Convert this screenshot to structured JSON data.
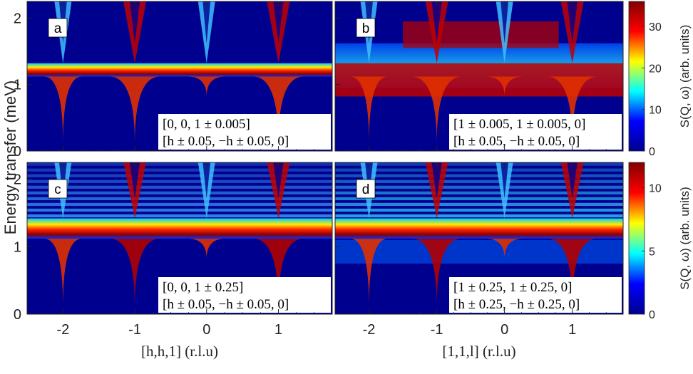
{
  "chart_data": {
    "type": "heatmap",
    "ylabel": "Energy transfer (meV)",
    "ylim": [
      0,
      2.25
    ],
    "y_ticks": [
      "0",
      "1",
      "2"
    ],
    "panels": [
      {
        "label": "a",
        "column": 0,
        "row": 0,
        "xlabel": "[h,h,1] (r.l.u)",
        "xlim": [
          -2.5,
          1.75
        ],
        "x_ticks": [
          "-2",
          "-1",
          "0",
          "1"
        ],
        "annotation": [
          "[0, 0, 1 ± 0.005]",
          "[h ± 0.05, −h ± 0.05, 0]"
        ]
      },
      {
        "label": "b",
        "column": 1,
        "row": 0,
        "xlabel": "[1,1,l] (r.l.u)",
        "xlim": [
          -2.5,
          1.75
        ],
        "x_ticks": [
          "-2",
          "-1",
          "0",
          "1"
        ],
        "annotation": [
          "[1 ± 0.005, 1 ± 0.005, 0]",
          "[h ± 0.05, −h ± 0.05, 0]"
        ]
      },
      {
        "label": "c",
        "column": 0,
        "row": 1,
        "xlabel": "[h,h,1] (r.l.u)",
        "xlim": [
          -2.5,
          1.75
        ],
        "x_ticks": [
          "-2",
          "-1",
          "0",
          "1"
        ],
        "annotation": [
          "[0, 0, 1 ± 0.25]",
          "[h ± 0.05, −h ± 0.05, 0]"
        ]
      },
      {
        "label": "d",
        "column": 1,
        "row": 1,
        "xlabel": "[1,1,l] (r.l.u)",
        "xlim": [
          -2.5,
          1.75
        ],
        "x_ticks": [
          "-2",
          "-1",
          "0",
          "1"
        ],
        "annotation": [
          "[1 ± 0.25, 1 ± 0.25, 0]",
          "[h ± 0.25, −h ± 0.25, 0]"
        ]
      }
    ],
    "colorbars": [
      {
        "label": "S(Q, ω) (arb. units)",
        "range": [
          0,
          36
        ],
        "ticks": [
          "0",
          "10",
          "20",
          "30"
        ],
        "tick_values": [
          0,
          10,
          20,
          30
        ]
      },
      {
        "label": "S(Q, ω) (arb. units)",
        "range": [
          0,
          12
        ],
        "ticks": [
          "0",
          "5",
          "10"
        ],
        "tick_values": [
          0,
          5,
          10
        ]
      }
    ],
    "colormap": "jet",
    "colormap_colors": [
      "#00008f",
      "#0000ff",
      "#00ffff",
      "#ffff00",
      "#ff0000",
      "#800000"
    ],
    "x_labels": [
      {
        "prefix": "[h,h,1]",
        "suffix": "(r.l.u)"
      },
      {
        "prefix": "[1,1,l]",
        "suffix": "(r.l.u)"
      }
    ]
  }
}
